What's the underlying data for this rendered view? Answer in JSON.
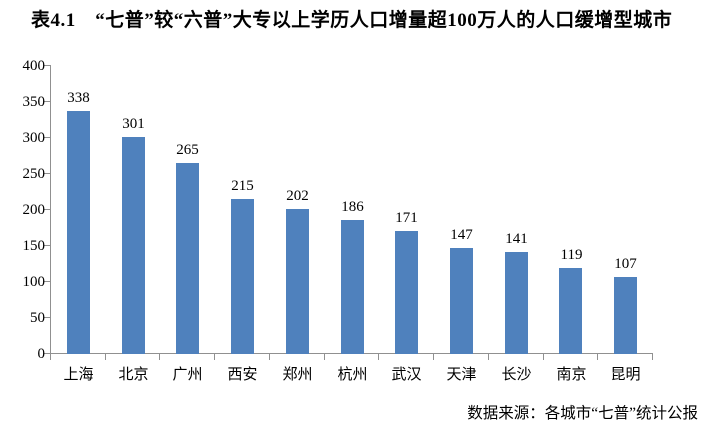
{
  "title": "表4.1　“七普”较“六普”大专以上学历人口增量超100万人的人口缓增型城市",
  "footer": "数据来源：各城市“七普”统计公报",
  "chart_data": {
    "type": "bar",
    "title": "表4.1　“七普”较“六普”大专以上学历人口增量超100万人的人口缓增型城市",
    "categories": [
      "上海",
      "北京",
      "广州",
      "西安",
      "郑州",
      "杭州",
      "武汉",
      "天津",
      "长沙",
      "南京",
      "昆明"
    ],
    "values": [
      338,
      301,
      265,
      215,
      202,
      186,
      171,
      147,
      141,
      119,
      107
    ],
    "xlabel": "",
    "ylabel": "",
    "ylim": [
      0,
      400
    ],
    "ytick_step": 50,
    "grid": false,
    "legend": false,
    "value_labels": true,
    "bar_color": "#4f81bd",
    "axis_color": "#909090",
    "text_color": "#000000",
    "source_note": "数据来源：各城市“七普”统计公报"
  }
}
